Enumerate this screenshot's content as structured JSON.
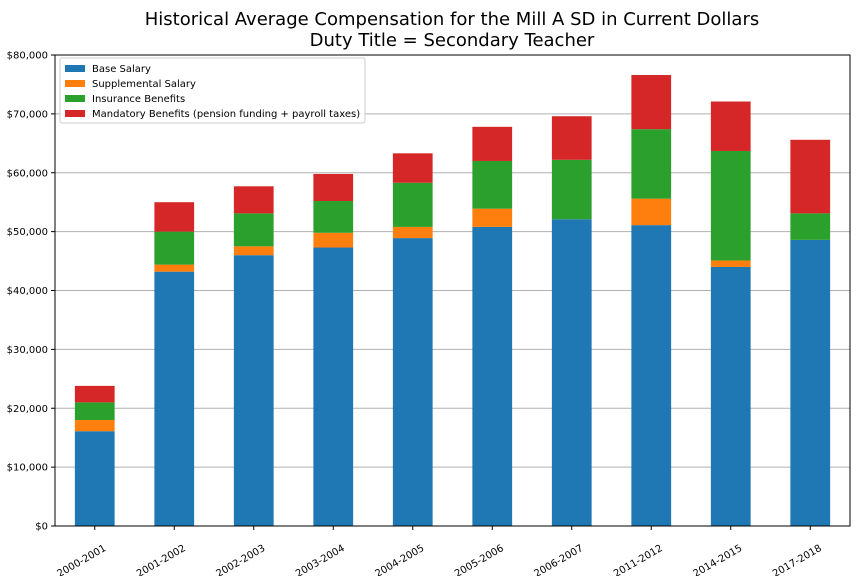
{
  "chart_data": {
    "type": "bar",
    "stacked": true,
    "title": "Historical Average Compensation for the Mill A SD in Current Dollars",
    "subtitle": "Duty Title = Secondary Teacher",
    "xlabel": "",
    "ylabel": "",
    "ylim": [
      0,
      80000
    ],
    "yticks": [
      0,
      10000,
      20000,
      30000,
      40000,
      50000,
      60000,
      70000,
      80000
    ],
    "ytick_labels": [
      "$0",
      "$10,000",
      "$20,000",
      "$30,000",
      "$40,000",
      "$50,000",
      "$60,000",
      "$70,000",
      "$80,000"
    ],
    "grid": "horizontal",
    "legend_position": "top-left",
    "categories": [
      "2000-2001",
      "2001-2002",
      "2002-2003",
      "2003-2004",
      "2004-2005",
      "2005-2006",
      "2006-2007",
      "2011-2012",
      "2014-2015",
      "2017-2018"
    ],
    "series": [
      {
        "name": "Base Salary",
        "color": "#1f77b4",
        "values": [
          16100,
          43200,
          46000,
          47300,
          48900,
          50800,
          52100,
          51100,
          44000,
          48600
        ]
      },
      {
        "name": "Supplemental Salary",
        "color": "#ff7f0e",
        "values": [
          1900,
          1200,
          1500,
          2500,
          1900,
          3100,
          0,
          4500,
          1100,
          0
        ]
      },
      {
        "name": "Insurance Benefits",
        "color": "#2ca02c",
        "values": [
          3000,
          5600,
          5600,
          5400,
          7500,
          8100,
          10100,
          11800,
          18600,
          4500
        ]
      },
      {
        "name": "Mandatory Benefits (pension funding + payroll taxes)",
        "color": "#d62728",
        "values": [
          2800,
          5000,
          4600,
          4600,
          5000,
          5800,
          7400,
          9200,
          8400,
          12500
        ]
      }
    ]
  }
}
